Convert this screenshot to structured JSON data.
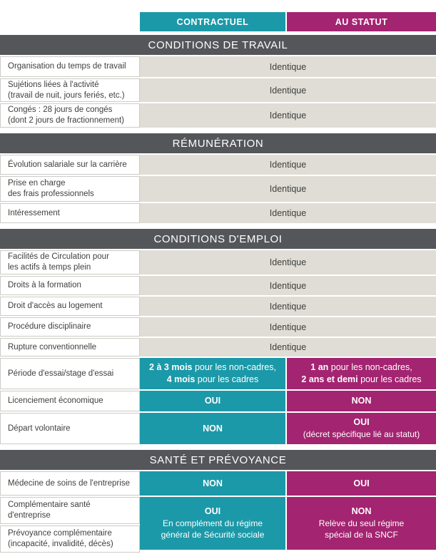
{
  "columns": {
    "contractuel": "CONTRACTUEL",
    "au_statut": "AU STATUT"
  },
  "colors": {
    "teal": "#1C99A8",
    "magenta": "#A32470",
    "section_header_bg": "#54565A",
    "identique_cell_bg": "#DFDDD5",
    "label_text": "#3E3F3E"
  },
  "sections": [
    {
      "title": "CONDITIONS DE TRAVAIL",
      "rows": [
        {
          "label": "Organisation du temps de travail",
          "value": "Identique"
        },
        {
          "label": "Sujétions liées à l'activité\n(travail de nuit, jours feriés, etc.)",
          "value": "Identique"
        },
        {
          "label": "Congés : 28 jours de congés\n(dont 2 jours de fractionnement)",
          "value": "Identique"
        }
      ]
    },
    {
      "title": "RÉMUNÉRATION",
      "rows": [
        {
          "label": "Évolution salariale sur la carrière",
          "value": "Identique"
        },
        {
          "label": "Prise en charge\ndes frais professionnels",
          "value": "Identique"
        },
        {
          "label": "Intéressement",
          "value": "Identique"
        }
      ]
    },
    {
      "title": "CONDITIONS D'EMPLOI",
      "rows": [
        {
          "label": "Facilités de Circulation pour\nles actifs à temps plein",
          "value": "Identique"
        },
        {
          "label": "Droits à la formation",
          "value": "Identique"
        },
        {
          "label": "Droit d'accès au logement",
          "value": "Identique"
        },
        {
          "label": "Procédure disciplinaire",
          "value": "Identique"
        },
        {
          "label": "Rupture conventionnelle",
          "value": "Identique"
        },
        {
          "label": "Période d'essai/stage d'essai",
          "contractuel": {
            "bold1": "2 à 3 mois",
            "rest1": " pour les non-cadres,",
            "bold2": "4 mois",
            "rest2": " pour les cadres"
          },
          "au_statut": {
            "bold1": "1 an",
            "rest1": " pour les non-cadres,",
            "bold2": "2 ans et demi",
            "rest2": " pour les cadres"
          }
        },
        {
          "label": "Licenciement économique",
          "contractuel": "OUI",
          "au_statut": "NON"
        },
        {
          "label": "Départ volontaire",
          "contractuel": "NON",
          "au_statut_main": "OUI",
          "au_statut_sub": "(décret spécifique lié au statut)"
        }
      ]
    },
    {
      "title": "SANTÉ ET PRÉVOYANCE",
      "rows": [
        {
          "label": "Médecine de soins de l'entreprise",
          "contractuel": "NON",
          "au_statut": "OUI"
        }
      ],
      "merged": {
        "labels": [
          "Complémentaire santé\nd'entreprise",
          "Prévoyance complémentaire\n(incapacité, invalidité, décès)"
        ],
        "contractuel_main": "OUI",
        "contractuel_sub": "En complément du régime\ngénéral de Sécurité sociale",
        "au_statut_main": "NON",
        "au_statut_sub": "Relève du seul régime\nspécial de la SNCF"
      }
    }
  ]
}
